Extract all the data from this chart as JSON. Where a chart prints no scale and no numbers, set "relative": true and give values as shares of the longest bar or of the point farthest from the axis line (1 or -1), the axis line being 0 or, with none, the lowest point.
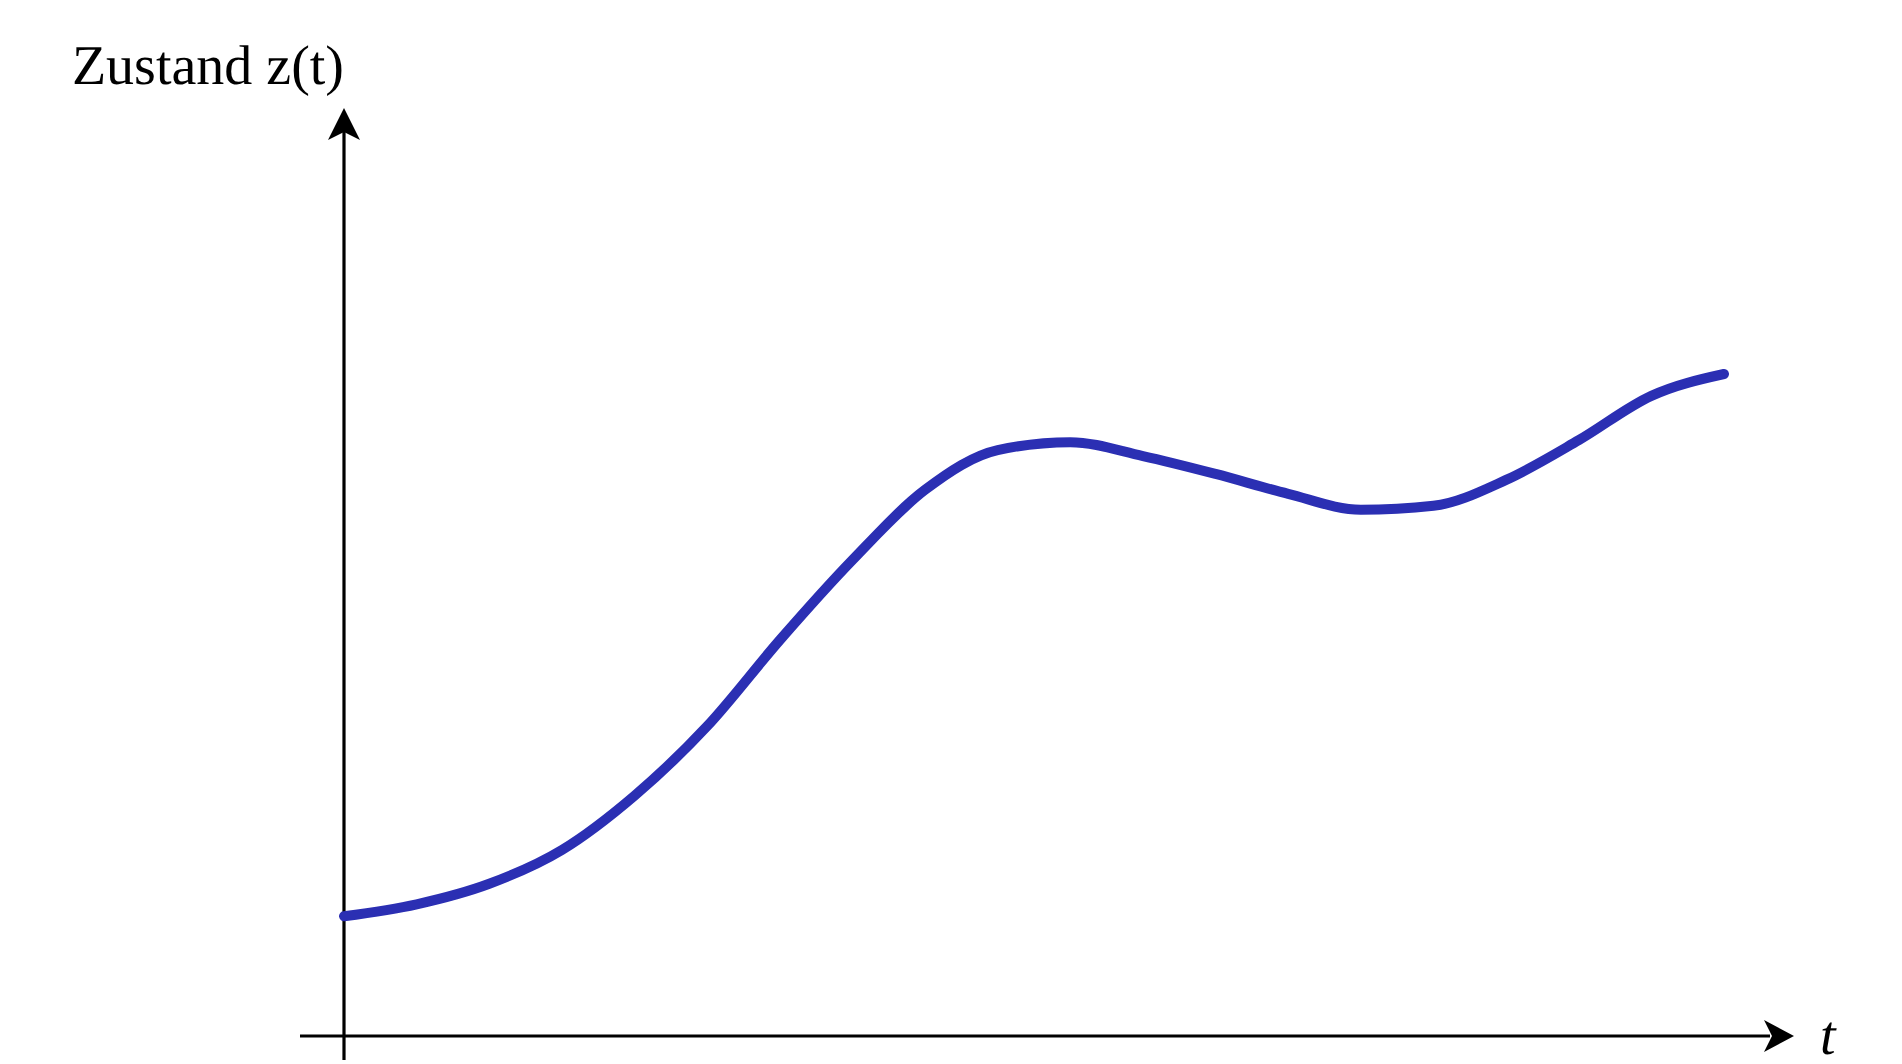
{
  "chart_data": {
    "type": "line",
    "relative": true,
    "ylabel": "Zustand z(t)",
    "xlabel": "t",
    "line_style": "solid",
    "marker": "none",
    "categories": [
      null,
      null,
      null,
      null,
      null,
      null,
      null,
      null,
      null,
      null,
      null,
      null,
      null,
      null,
      null,
      null,
      null,
      null,
      null,
      null
    ],
    "series": [
      {
        "color": "#2b2fb3",
        "values": [
          0.181,
          0.199,
          0.23,
          0.281,
          0.363,
          0.468,
          0.598,
          0.719,
          0.825,
          0.885,
          0.897,
          0.876,
          0.849,
          0.819,
          0.795,
          0.801,
          0.84,
          0.9,
          0.967,
          1
        ]
      }
    ]
  }
}
